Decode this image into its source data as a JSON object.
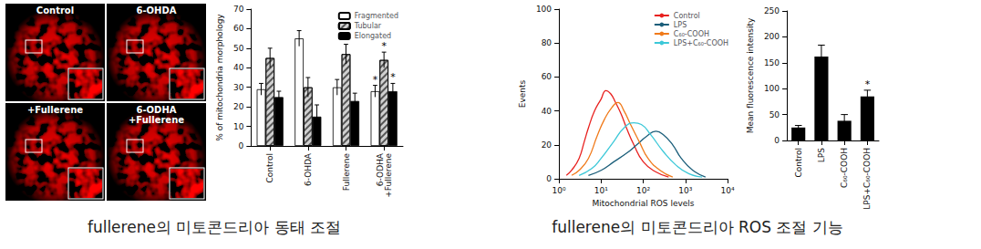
{
  "micrograph_labels": [
    "Control",
    "6-OHDA",
    "+Fullerene",
    "6-ODHA\n+Fullerene"
  ],
  "captions": [
    "fullerene의 미토콘드리아 동태 조절",
    "fullerene의 미토콘드리아 ROS 조절 기능"
  ],
  "chart_data": [
    {
      "type": "bar",
      "categories": [
        "Control",
        "6-OHDA",
        "Fullerene",
        "6-ODHA\n+Fullerene"
      ],
      "ylabel": "% of mitochondria morphology",
      "ylim": [
        0,
        70
      ],
      "yticks": [
        0,
        10,
        20,
        30,
        40,
        50,
        60,
        70
      ],
      "grid": false,
      "legend": "upper right",
      "series": [
        {
          "name": "Fragmented",
          "color": "#ffffff",
          "values": [
            29,
            55,
            30,
            28
          ],
          "errors": [
            3,
            4,
            4,
            3
          ],
          "annotations": [
            null,
            null,
            null,
            "*"
          ]
        },
        {
          "name": "Tubular",
          "color": "#d0d0d0",
          "values": [
            45,
            30,
            47,
            44
          ],
          "errors": [
            5,
            5,
            5,
            4
          ],
          "annotations": [
            null,
            null,
            null,
            "*"
          ]
        },
        {
          "name": "Elongated",
          "color": "#000000",
          "values": [
            25,
            15,
            23,
            28
          ],
          "errors": [
            3,
            6,
            4,
            4
          ],
          "annotations": [
            null,
            null,
            null,
            "*"
          ]
        }
      ]
    },
    {
      "type": "line",
      "xlabel": "Mitochondrial ROS levels",
      "ylabel": "Events",
      "log": "x",
      "xlim": [
        1,
        10000
      ],
      "xticks": [
        {
          "value": 1,
          "label": "10⁰"
        },
        {
          "value": 10,
          "label": "10¹"
        },
        {
          "value": 100,
          "label": "10²"
        },
        {
          "value": 1000,
          "label": "10³"
        },
        {
          "value": 10000,
          "label": "10⁴"
        }
      ],
      "ylim": [
        0,
        100
      ],
      "yticks": [
        0,
        20,
        40,
        60,
        80,
        100
      ],
      "grid": false,
      "legend": "upper right",
      "series": [
        {
          "name": "Control",
          "color": "#e8211f",
          "x": [
            1.5,
            2,
            3,
            4,
            5,
            7,
            10,
            13,
            17,
            22,
            30,
            40,
            60,
            100,
            200,
            400
          ],
          "values": [
            2,
            5,
            12,
            22,
            30,
            40,
            47,
            52,
            50,
            45,
            38,
            30,
            20,
            10,
            4,
            1
          ]
        },
        {
          "name": "LPS",
          "color": "#1b5e7a",
          "x": [
            5,
            10,
            20,
            40,
            70,
            120,
            200,
            300,
            500,
            800,
            1500,
            3000
          ],
          "values": [
            2,
            5,
            10,
            15,
            20,
            25,
            28,
            26,
            20,
            12,
            5,
            1
          ]
        },
        {
          "name": "C₆₀-COOH",
          "color": "#f07a1a",
          "x": [
            2,
            3,
            5,
            8,
            12,
            18,
            25,
            35,
            50,
            80,
            130,
            250,
            500
          ],
          "values": [
            2,
            5,
            12,
            25,
            35,
            42,
            45,
            40,
            32,
            22,
            12,
            5,
            1
          ]
        },
        {
          "name": "LPS+C₆₀-COOH",
          "color": "#3cc8d8",
          "x": [
            3,
            6,
            10,
            20,
            35,
            60,
            90,
            150,
            300,
            600,
            1200,
            2500
          ],
          "values": [
            2,
            6,
            12,
            22,
            30,
            33,
            32,
            26,
            16,
            8,
            3,
            1
          ]
        }
      ]
    },
    {
      "type": "bar",
      "categories": [
        "Control",
        "LPS",
        "C₆₀-COOH",
        "LPS+C₆₀-COOH"
      ],
      "values": [
        25,
        162,
        38,
        85
      ],
      "errors": [
        4,
        22,
        12,
        12
      ],
      "annotations": [
        null,
        null,
        null,
        "*"
      ],
      "color": "#000000",
      "ylabel": "Mean fluorescence intensity",
      "ylim": [
        0,
        250
      ],
      "yticks": [
        0,
        50,
        100,
        150,
        200,
        250
      ],
      "grid": false
    }
  ]
}
